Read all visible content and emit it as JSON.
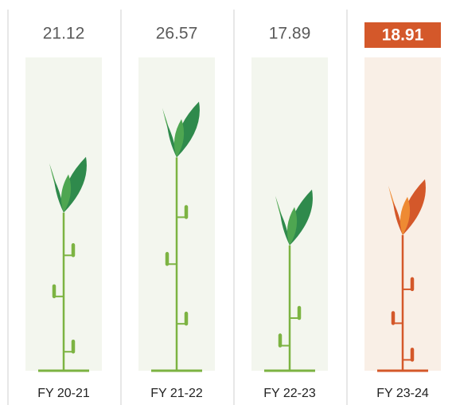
{
  "chart_data": {
    "type": "pictograph",
    "categories": [
      "FY 20-21",
      "FY 21-22",
      "FY 22-23",
      "FY 23-24"
    ],
    "values": [
      21.12,
      26.57,
      17.89,
      18.91
    ],
    "color": "#7cb342",
    "leaf_color": "#2f8a4c",
    "highlight": {
      "index": 3,
      "color": "#d4582a"
    }
  }
}
